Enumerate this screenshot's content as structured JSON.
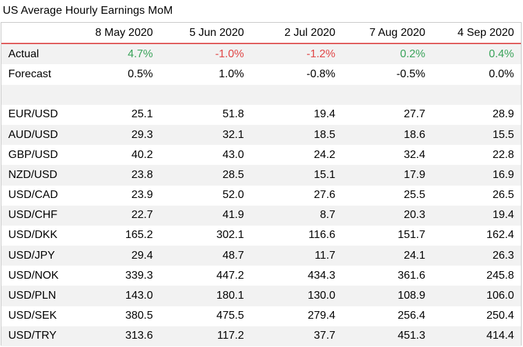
{
  "title": "US Average Hourly Earnings MoM",
  "columns": [
    "8 May 2020",
    "5 Jun 2020",
    "2 Jul 2020",
    "7 Aug 2020",
    "4 Sep 2020"
  ],
  "actual": {
    "label": "Actual",
    "values": [
      "4.7%",
      "-1.0%",
      "-1.2%",
      "0.2%",
      "0.4%"
    ]
  },
  "forecast": {
    "label": "Forecast",
    "values": [
      "0.5%",
      "1.0%",
      "-0.8%",
      "-0.5%",
      "0.0%"
    ]
  },
  "pairs": [
    {
      "label": "EUR/USD",
      "values": [
        "25.1",
        "51.8",
        "19.4",
        "27.7",
        "28.9"
      ]
    },
    {
      "label": "AUD/USD",
      "values": [
        "29.3",
        "32.1",
        "18.5",
        "18.6",
        "15.5"
      ]
    },
    {
      "label": "GBP/USD",
      "values": [
        "40.2",
        "43.0",
        "24.2",
        "32.4",
        "22.8"
      ]
    },
    {
      "label": "NZD/USD",
      "values": [
        "23.8",
        "28.5",
        "15.1",
        "17.9",
        "16.9"
      ]
    },
    {
      "label": "USD/CAD",
      "values": [
        "23.9",
        "52.0",
        "27.6",
        "25.5",
        "26.5"
      ]
    },
    {
      "label": "USD/CHF",
      "values": [
        "22.7",
        "41.9",
        "8.7",
        "20.3",
        "19.4"
      ]
    },
    {
      "label": "USD/DKK",
      "values": [
        "165.2",
        "302.1",
        "116.6",
        "151.7",
        "162.4"
      ]
    },
    {
      "label": "USD/JPY",
      "values": [
        "29.4",
        "48.7",
        "11.7",
        "24.1",
        "26.3"
      ]
    },
    {
      "label": "USD/NOK",
      "values": [
        "339.3",
        "447.2",
        "434.3",
        "361.6",
        "245.8"
      ]
    },
    {
      "label": "USD/PLN",
      "values": [
        "143.0",
        "180.1",
        "130.0",
        "108.9",
        "106.0"
      ]
    },
    {
      "label": "USD/SEK",
      "values": [
        "380.5",
        "475.5",
        "279.4",
        "256.4",
        "250.4"
      ]
    },
    {
      "label": "USD/TRY",
      "values": [
        "313.6",
        "117.2",
        "37.7",
        "451.3",
        "414.4"
      ]
    }
  ],
  "colors": {
    "positive": "#3aa35a",
    "negative": "#e04545",
    "header_rule": "#e05a5a",
    "row_shade": "#f2f2f2"
  }
}
